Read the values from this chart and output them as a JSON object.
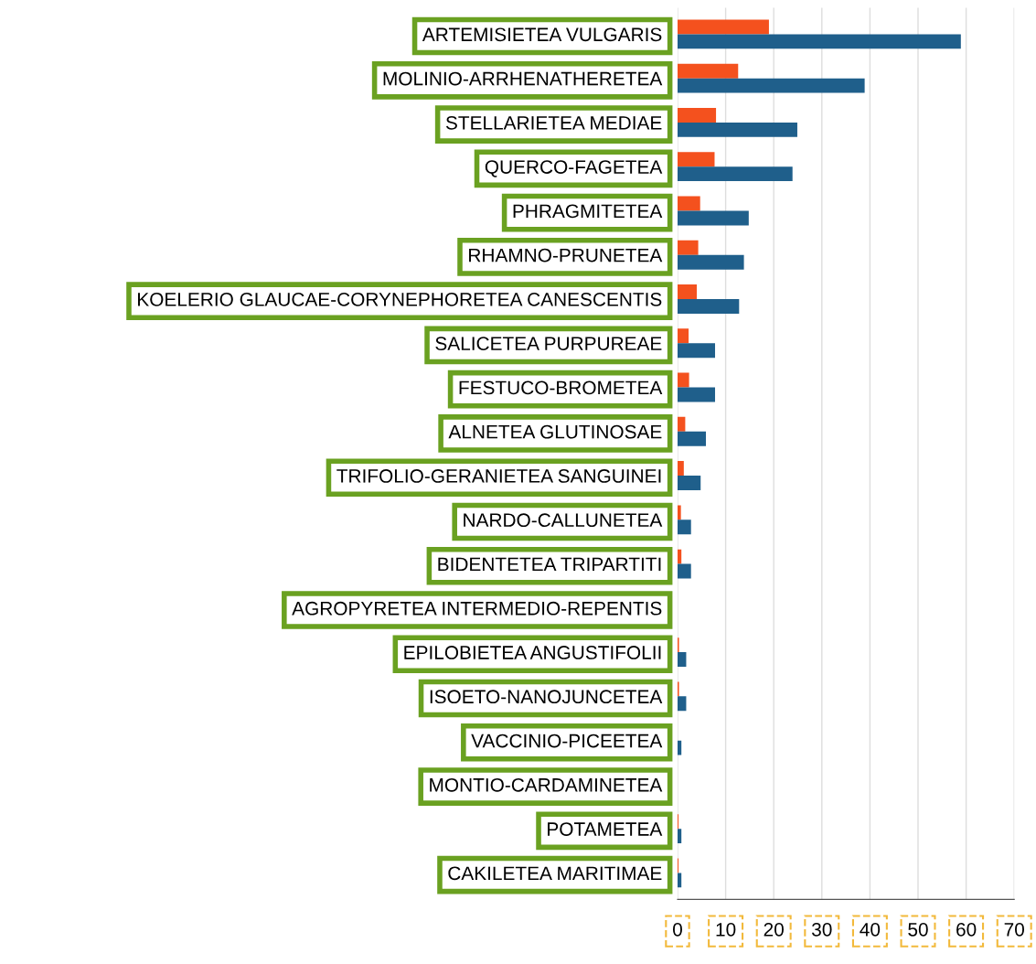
{
  "chart_data": {
    "type": "bar",
    "orientation": "horizontal",
    "categories": [
      "ARTEMISIETEA VULGARIS",
      "MOLINIO-ARRHENATHERETEA",
      "STELLARIETEA MEDIAE",
      "QUERCO-FAGETEA",
      "PHRAGMITETEA",
      "RHAMNO-PRUNETEA",
      "KOELERIO GLAUCAE-CORYNEPHORETEA CANESCENTIS",
      "SALICETEA PURPUREAE",
      "FESTUCO-BROMETEA",
      "ALNETEA GLUTINOSAE",
      "TRIFOLIO-GERANIETEA SANGUINEI",
      "NARDO-CALLUNETEA",
      "BIDENTETEA TRIPARTITI",
      "AGROPYRETEA INTERMEDIO-REPENTIS",
      "EPILOBIETEA ANGUSTIFOLII",
      "ISOETO-NANOJUNCETEA",
      "VACCINIO-PICEETEA",
      "MONTIO-CARDAMINETEA",
      "POTAMETEA",
      "CAKILETEA MARITIMAE"
    ],
    "series": [
      {
        "color": "#f4511e",
        "values": [
          19.0,
          12.6,
          8.0,
          7.7,
          4.7,
          4.3,
          4.0,
          2.3,
          2.4,
          1.6,
          1.3,
          0.7,
          0.8,
          null,
          0.3,
          0.3,
          0,
          null,
          0.2,
          0.2
        ]
      },
      {
        "color": "#1f5f8b",
        "values": [
          58.9,
          38.9,
          24.9,
          23.9,
          14.8,
          13.8,
          12.8,
          7.8,
          7.8,
          5.9,
          4.8,
          2.8,
          2.8,
          null,
          1.8,
          1.8,
          0.8,
          null,
          0.8,
          0.8
        ]
      }
    ],
    "xlim": [
      0,
      70
    ],
    "xticks": [
      0,
      10,
      20,
      30,
      40,
      50,
      60,
      70
    ],
    "grid": "x",
    "legend": false
  }
}
